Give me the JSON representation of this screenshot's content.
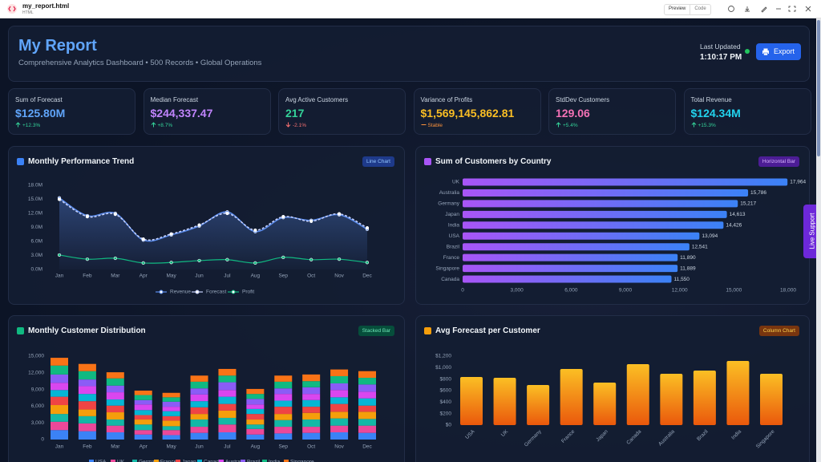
{
  "window": {
    "file_name": "my_report.html",
    "file_type": "HTML",
    "tabs": [
      "Preview",
      "Code"
    ]
  },
  "header": {
    "title": "My Report",
    "subtitle": "Comprehensive Analytics Dashboard • 500 Records • Global Operations",
    "last_updated_label": "Last Updated",
    "last_updated_time": "1:10:17 PM",
    "export_button": "Export"
  },
  "live_support": "Live Support",
  "kpis": [
    {
      "label": "Sum of Forecast",
      "value": "$125.80M",
      "change": "+12.3%",
      "trend": "up",
      "color": "#60a5fa"
    },
    {
      "label": "Median Forecast",
      "value": "$244,337.47",
      "change": "+8.7%",
      "trend": "up",
      "color": "#c084fc"
    },
    {
      "label": "Avg Active Customers",
      "value": "217",
      "change": "-2.1%",
      "trend": "down",
      "color": "#34d399"
    },
    {
      "label": "Variance of Profits",
      "value": "$1,569,145,862.81",
      "change": "Stable",
      "trend": "flat",
      "color": "#fbbf24"
    },
    {
      "label": "StdDev Customers",
      "value": "129.06",
      "change": "+5.4%",
      "trend": "up",
      "color": "#f472b6"
    },
    {
      "label": "Total Revenue",
      "value": "$124.34M",
      "change": "+15.3%",
      "trend": "up",
      "color": "#22d3ee"
    }
  ],
  "chart_data": [
    {
      "type": "line",
      "title": "Monthly Performance Trend",
      "badge": "Line Chart",
      "categories": [
        "Jan",
        "Feb",
        "Mar",
        "Apr",
        "May",
        "Jun",
        "Jul",
        "Aug",
        "Sep",
        "Oct",
        "Nov",
        "Dec"
      ],
      "series": [
        {
          "name": "Revenue",
          "color": "#5b8def",
          "values": [
            15.3,
            11.5,
            12.0,
            6.3,
            7.4,
            9.3,
            12.3,
            8.1,
            11.1,
            10.5,
            11.7,
            8.6
          ]
        },
        {
          "name": "Forecast",
          "color": "#c7d2fe",
          "values": [
            15.0,
            11.3,
            11.8,
            6.5,
            7.6,
            9.5,
            12.0,
            8.4,
            11.3,
            10.3,
            11.9,
            8.9
          ]
        },
        {
          "name": "Profit",
          "color": "#10b981",
          "values": [
            3.1,
            2.2,
            2.4,
            1.4,
            1.5,
            1.9,
            2.1,
            1.4,
            2.6,
            2.1,
            2.2,
            1.5
          ]
        }
      ],
      "ylim": [
        0,
        18
      ],
      "yticks": [
        {
          "value": 0,
          "label": "0.0M"
        },
        {
          "value": 3,
          "label": "3.0M"
        },
        {
          "value": 6,
          "label": "6.0M"
        },
        {
          "value": 9,
          "label": "9.0M"
        },
        {
          "value": 12,
          "label": "12.0M"
        },
        {
          "value": 15,
          "label": "15.0M"
        },
        {
          "value": 18,
          "label": "18.0M"
        }
      ]
    },
    {
      "type": "hbar",
      "title": "Sum of Customers by Country",
      "badge": "Horizontal Bar",
      "categories": [
        "UK",
        "Australia",
        "Germany",
        "Japan",
        "India",
        "USA",
        "Brazil",
        "France",
        "Singapore",
        "Canada"
      ],
      "values": [
        17964,
        15786,
        15217,
        14613,
        14426,
        13094,
        12541,
        11890,
        11889,
        11550
      ],
      "value_labels": [
        "17,964",
        "15,786",
        "15,217",
        "14,613",
        "14,426",
        "13,094",
        "12,541",
        "11,890",
        "11,889",
        "11,550"
      ],
      "color_start": "#a855f7",
      "color_end": "#3b82f6",
      "xlim": [
        0,
        18000
      ],
      "xticks": [
        0,
        {
          "value": 3000,
          "label": "3,000"
        },
        {
          "value": 6000,
          "label": "6,000"
        },
        {
          "value": 9000,
          "label": "9,000"
        },
        {
          "value": 12000,
          "label": "12,000"
        },
        {
          "value": 15000,
          "label": "15,000"
        },
        {
          "value": 18000,
          "label": "18,000"
        }
      ]
    },
    {
      "type": "stacked_bar",
      "title": "Monthly Customer Distribution",
      "badge": "Stacked Bar",
      "categories": [
        "Jan",
        "Feb",
        "Mar",
        "Apr",
        "May",
        "Jun",
        "Jul",
        "Aug",
        "Sep",
        "Oct",
        "Nov",
        "Dec"
      ],
      "series": [
        {
          "name": "USA",
          "color": "#3b82f6",
          "values": [
            1700,
            1500,
            1300,
            900,
            800,
            1200,
            1300,
            900,
            1100,
            1200,
            1300,
            1200
          ]
        },
        {
          "name": "UK",
          "color": "#ec4899",
          "values": [
            1500,
            1400,
            1200,
            800,
            900,
            1100,
            1400,
            1000,
            1200,
            1100,
            1200,
            1300
          ]
        },
        {
          "name": "Germany",
          "color": "#14b8a6",
          "values": [
            1400,
            1300,
            1100,
            1000,
            700,
            1300,
            1200,
            800,
            1200,
            1300,
            1300,
            1200
          ]
        },
        {
          "name": "France",
          "color": "#f59e0b",
          "values": [
            1600,
            1200,
            1300,
            900,
            1000,
            1000,
            1300,
            900,
            1100,
            1200,
            1200,
            1300
          ]
        },
        {
          "name": "Japan",
          "color": "#ef4444",
          "values": [
            1500,
            1500,
            1200,
            800,
            800,
            1200,
            1200,
            1000,
            1300,
            1100,
            1400,
            1100
          ]
        },
        {
          "name": "Canada",
          "color": "#06b6d4",
          "values": [
            1200,
            1300,
            1100,
            900,
            900,
            1100,
            1300,
            900,
            1100,
            1200,
            1200,
            1300
          ]
        },
        {
          "name": "Australia",
          "color": "#d946ef",
          "values": [
            1300,
            1400,
            1300,
            1000,
            800,
            1200,
            1200,
            800,
            1200,
            1100,
            1300,
            1200
          ]
        },
        {
          "name": "Brazil",
          "color": "#8b5cf6",
          "values": [
            1500,
            1200,
            1200,
            800,
            900,
            1100,
            1400,
            1000,
            1000,
            1200,
            1200,
            1300
          ]
        },
        {
          "name": "India",
          "color": "#10b981",
          "values": [
            1600,
            1500,
            1300,
            900,
            800,
            1200,
            1200,
            900,
            1200,
            1100,
            1300,
            1200
          ]
        },
        {
          "name": "Singapore",
          "color": "#f97316",
          "values": [
            1400,
            1300,
            1100,
            800,
            800,
            1100,
            1200,
            900,
            1100,
            1200,
            1200,
            1200
          ]
        }
      ],
      "ylim": [
        0,
        15000
      ],
      "yticks": [
        0,
        {
          "value": 3000,
          "label": "3,000"
        },
        {
          "value": 6000,
          "label": "6,000"
        },
        {
          "value": 9000,
          "label": "9,000"
        },
        {
          "value": 12000,
          "label": "12,000"
        },
        {
          "value": 15000,
          "label": "15,000"
        }
      ]
    },
    {
      "type": "column",
      "title": "Avg Forecast per Customer",
      "badge": "Column Chart",
      "categories": [
        "USA",
        "UK",
        "Germany",
        "France",
        "Japan",
        "Canada",
        "Australia",
        "Brazil",
        "India",
        "Singapore"
      ],
      "values": [
        837,
        823,
        698,
        977,
        740,
        1060,
        893,
        949,
        1116,
        893
      ],
      "color_start": "#fbbf24",
      "color_end": "#ea580c",
      "ylim": [
        0,
        1200
      ],
      "yticks": [
        {
          "value": 0,
          "label": "$0"
        },
        {
          "value": 200,
          "label": "$200"
        },
        {
          "value": 400,
          "label": "$400"
        },
        {
          "value": 600,
          "label": "$600"
        },
        {
          "value": 800,
          "label": "$800"
        },
        {
          "value": 1000,
          "label": "$1,000"
        },
        {
          "value": 1200,
          "label": "$1,200"
        }
      ]
    }
  ]
}
